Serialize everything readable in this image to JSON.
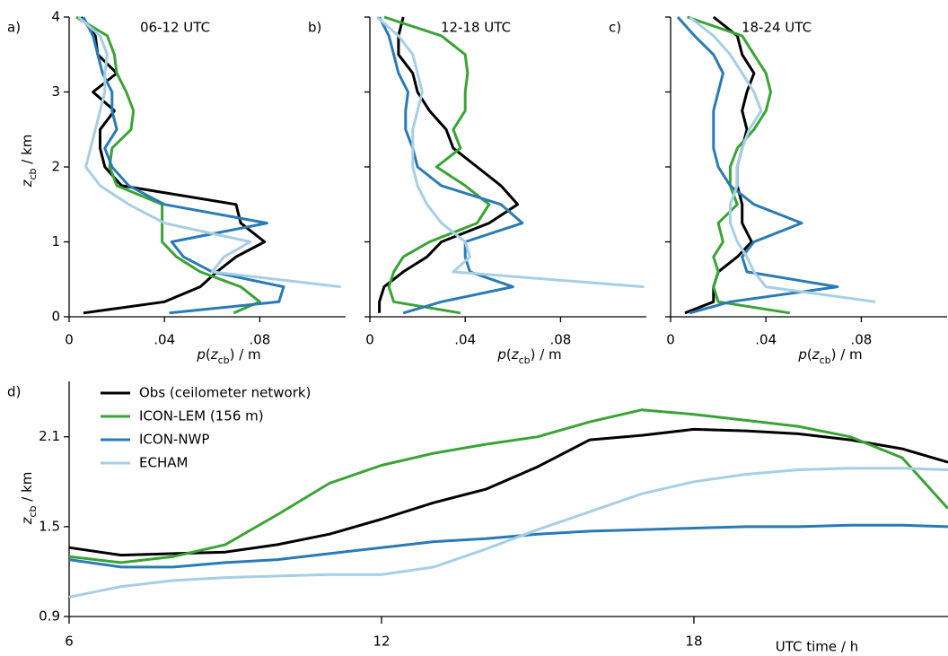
{
  "chart_data": [
    {
      "type": "profile",
      "label": "a)",
      "title": "06-12 UTC",
      "y": [
        0.05,
        0.2,
        0.4,
        0.6,
        0.8,
        1.0,
        1.25,
        1.5,
        1.75,
        2.0,
        2.25,
        2.5,
        2.75,
        3.0,
        3.25,
        3.5,
        3.75,
        4.0
      ],
      "xlim": [
        0,
        0.116
      ],
      "xticks": [
        0,
        {
          "value": 0.04,
          "label": ".04"
        },
        {
          "value": 0.08,
          "label": ".08"
        }
      ],
      "ylim": [
        0,
        4
      ],
      "yticks": [
        0,
        1,
        2,
        3,
        4
      ],
      "ytick_labels": true,
      "xlabel": [
        "p",
        "(",
        "z",
        "cb",
        ") / m"
      ],
      "ylabel": [
        "z",
        "cb",
        " / km"
      ],
      "series": [
        {
          "color": "#000000",
          "values": [
            0.006,
            0.04,
            0.055,
            0.062,
            0.07,
            0.082,
            0.072,
            0.07,
            0.022,
            0.015,
            0.013,
            0.013,
            0.019,
            0.01,
            0.02,
            0.012,
            0.011,
            0.005
          ]
        },
        {
          "color": "#3aa335",
          "values": [
            0.069,
            0.08,
            0.072,
            0.055,
            0.045,
            0.039,
            0.039,
            0.039,
            0.02,
            0.017,
            0.018,
            0.026,
            0.027,
            0.024,
            0.02,
            0.019,
            0.016,
            0.003
          ]
        },
        {
          "color": "#2a7ab5",
          "values": [
            0.042,
            0.088,
            0.09,
            0.06,
            0.048,
            0.043,
            0.083,
            0.04,
            0.025,
            0.018,
            0.015,
            0.02,
            0.018,
            0.018,
            0.014,
            0.012,
            0.01,
            0.006
          ]
        },
        {
          "color": "#a6cfe5",
          "values": [
            null,
            null,
            0.114,
            0.06,
            0.065,
            0.076,
            0.04,
            0.025,
            0.013,
            0.007,
            0.009,
            0.011,
            0.013,
            0.015,
            0.015,
            0.016,
            0.013,
            0.004
          ]
        }
      ]
    },
    {
      "type": "profile",
      "label": "b)",
      "title": "12-18 UTC",
      "y": [
        0.05,
        0.2,
        0.4,
        0.6,
        0.8,
        1.0,
        1.25,
        1.5,
        1.75,
        2.0,
        2.25,
        2.5,
        2.75,
        3.0,
        3.25,
        3.5,
        3.75,
        4.0
      ],
      "xlim": [
        0,
        0.116
      ],
      "xticks": [
        0,
        {
          "value": 0.04,
          "label": ".04"
        },
        {
          "value": 0.08,
          "label": ".08"
        }
      ],
      "ylim": [
        0,
        4
      ],
      "yticks": [
        0,
        1,
        2,
        3,
        4
      ],
      "ytick_labels": false,
      "xlabel": [
        "p",
        "(",
        "z",
        "cb",
        ") / m"
      ],
      "series": [
        {
          "color": "#000000",
          "values": [
            0.004,
            0.004,
            0.006,
            0.014,
            0.024,
            0.03,
            0.05,
            0.062,
            0.055,
            0.045,
            0.035,
            0.032,
            0.025,
            0.02,
            0.018,
            0.012,
            0.012,
            0.014
          ]
        },
        {
          "color": "#3aa335",
          "values": [
            0.038,
            0.01,
            0.008,
            0.01,
            0.014,
            0.025,
            0.045,
            0.05,
            0.04,
            0.028,
            0.038,
            0.035,
            0.04,
            0.04,
            0.041,
            0.04,
            0.03,
            0.006
          ]
        },
        {
          "color": "#2a7ab5",
          "values": [
            0.014,
            0.03,
            0.06,
            0.042,
            0.04,
            0.04,
            0.064,
            0.055,
            0.03,
            0.02,
            0.018,
            0.015,
            0.015,
            0.016,
            0.012,
            0.01,
            0.008,
            0.004
          ]
        },
        {
          "color": "#a6cfe5",
          "values": [
            null,
            null,
            0.115,
            0.035,
            0.042,
            0.04,
            0.03,
            0.024,
            0.02,
            0.018,
            0.018,
            0.018,
            0.02,
            0.022,
            0.02,
            0.018,
            0.012,
            0.003
          ]
        }
      ]
    },
    {
      "type": "profile",
      "label": "c)",
      "title": "18-24 UTC",
      "y": [
        0.05,
        0.2,
        0.4,
        0.6,
        0.8,
        1.0,
        1.25,
        1.5,
        1.75,
        2.0,
        2.25,
        2.5,
        2.75,
        3.0,
        3.25,
        3.5,
        3.75,
        4.0
      ],
      "xlim": [
        0,
        0.116
      ],
      "xticks": [
        0,
        {
          "value": 0.04,
          "label": ".04"
        },
        {
          "value": 0.08,
          "label": ".08"
        }
      ],
      "ylim": [
        0,
        4
      ],
      "yticks": [
        0,
        1,
        2,
        3,
        4
      ],
      "ytick_labels": false,
      "xlabel": [
        "p",
        "(",
        "z",
        "cb",
        ") / m"
      ],
      "series": [
        {
          "color": "#000000",
          "values": [
            0.006,
            0.018,
            0.018,
            0.02,
            0.028,
            0.034,
            0.03,
            0.03,
            0.028,
            0.028,
            0.03,
            0.032,
            0.03,
            0.032,
            0.035,
            0.03,
            0.028,
            0.018
          ]
        },
        {
          "color": "#3aa335",
          "values": [
            0.05,
            0.02,
            0.018,
            0.02,
            0.018,
            0.022,
            0.02,
            0.028,
            0.025,
            0.025,
            0.028,
            0.035,
            0.04,
            0.042,
            0.04,
            0.035,
            0.03,
            0.007
          ]
        },
        {
          "color": "#2a7ab5",
          "values": [
            0.008,
            0.025,
            0.07,
            0.032,
            0.03,
            0.035,
            0.055,
            0.035,
            0.025,
            0.02,
            0.018,
            0.018,
            0.018,
            0.02,
            0.022,
            0.018,
            0.01,
            0.003
          ]
        },
        {
          "color": "#a6cfe5",
          "values": [
            null,
            0.086,
            0.04,
            0.035,
            0.032,
            0.028,
            0.025,
            0.025,
            0.028,
            0.028,
            0.03,
            0.033,
            0.038,
            0.035,
            0.03,
            0.025,
            0.018,
            0.008
          ]
        }
      ]
    },
    {
      "type": "line",
      "label": "d)",
      "x": [
        6,
        7,
        8,
        9,
        10,
        11,
        12,
        13,
        14,
        15,
        16,
        17,
        18,
        19,
        20,
        21,
        22,
        22.88
      ],
      "xlim": [
        6,
        22.88
      ],
      "xticks": [
        6,
        12,
        18
      ],
      "ylim": [
        0.9,
        2.47
      ],
      "yticks": [
        0.9,
        1.5,
        2.1
      ],
      "xlabel": "UTC time / h",
      "ylabel": [
        "z",
        "cb",
        " / km"
      ],
      "series": [
        {
          "name": "Obs (ceilometer network)",
          "color": "#000000",
          "values": [
            1.36,
            1.31,
            1.32,
            1.33,
            1.38,
            1.45,
            1.55,
            1.66,
            1.75,
            1.9,
            2.08,
            2.11,
            2.15,
            2.14,
            2.12,
            2.08,
            2.02,
            1.93
          ]
        },
        {
          "name": "ICON-LEM (156 m)",
          "color": "#3aa335",
          "values": [
            1.3,
            1.26,
            1.3,
            1.38,
            1.58,
            1.79,
            1.91,
            1.99,
            2.05,
            2.1,
            2.2,
            2.28,
            2.25,
            2.21,
            2.17,
            2.1,
            1.96,
            1.62
          ]
        },
        {
          "name": "ICON-NWP",
          "color": "#2a7ab5",
          "values": [
            1.28,
            1.23,
            1.23,
            1.26,
            1.28,
            1.32,
            1.36,
            1.4,
            1.42,
            1.45,
            1.47,
            1.48,
            1.49,
            1.5,
            1.5,
            1.51,
            1.51,
            1.5
          ]
        },
        {
          "name": "ECHAM",
          "color": "#a6cfe5",
          "values": [
            1.03,
            1.1,
            1.14,
            1.16,
            1.17,
            1.18,
            1.18,
            1.23,
            1.35,
            1.48,
            1.6,
            1.72,
            1.8,
            1.85,
            1.88,
            1.89,
            1.89,
            1.88
          ]
        }
      ]
    }
  ]
}
